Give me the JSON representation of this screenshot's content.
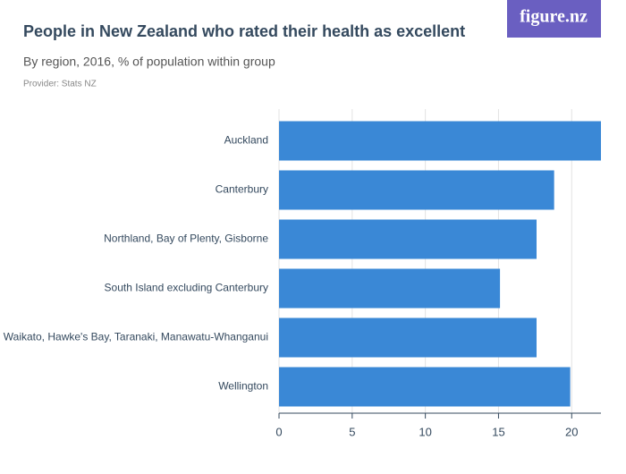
{
  "chart_data": {
    "type": "hbar",
    "title": "People in New Zealand who rated their health as excellent",
    "subtitle": "By region, 2016, % of population within group",
    "provider": "Provider: Stats NZ",
    "logo": "figure.nz",
    "categories": [
      "Auckland",
      "Canterbury",
      "Northland, Bay of Plenty, Gisborne",
      "South Island excluding Canterbury",
      "Waikato, Hawke's Bay, Taranaki, Manawatu-Whanganui",
      "Wellington"
    ],
    "values": [
      22.0,
      18.8,
      17.6,
      15.1,
      17.6,
      19.9
    ],
    "color": "#3a88d6",
    "xlim": [
      0,
      22
    ],
    "xticks": [
      0,
      5,
      10,
      15,
      20
    ],
    "grid": true
  }
}
